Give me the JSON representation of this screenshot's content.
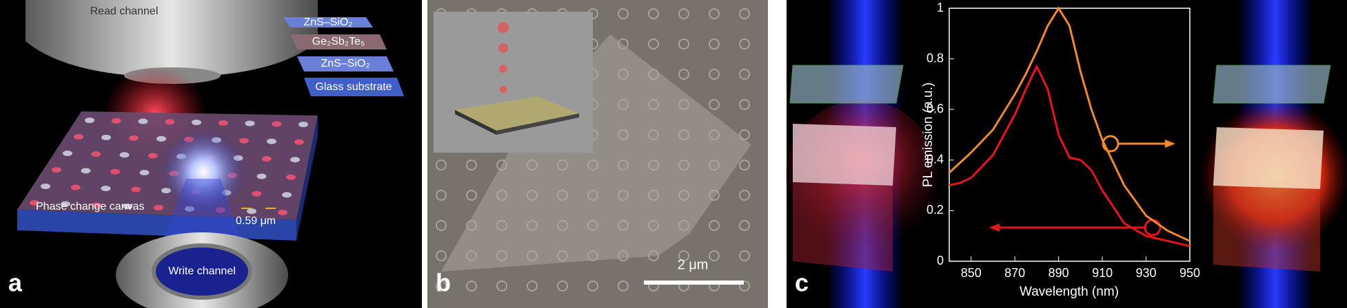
{
  "panel_a": {
    "letter": "a",
    "read_channel": "Read channel",
    "layers": [
      "ZnS–SiO₂",
      "Ge₂Sb₂Te₅",
      "ZnS–SiO₂",
      "Glass substrate"
    ],
    "canvas_label": "Phase change canvas",
    "spacing_label": "0.59 μm",
    "write_channel": "Write channel"
  },
  "panel_b": {
    "letter": "b",
    "scale_label": "2 μm"
  },
  "panel_c": {
    "letter": "c",
    "chart_data": {
      "type": "line",
      "x_label": "Wavelength (nm)",
      "y_label": "PL emission (a.u.)",
      "x": [
        840,
        845,
        850,
        860,
        870,
        875,
        880,
        885,
        890,
        895,
        900,
        905,
        910,
        920,
        930,
        940,
        950
      ],
      "series": [
        {
          "color": "#f08a2c",
          "values": [
            0.35,
            0.39,
            0.43,
            0.52,
            0.66,
            0.74,
            0.83,
            0.93,
            1.0,
            0.93,
            0.75,
            0.6,
            0.48,
            0.3,
            0.18,
            0.12,
            0.08
          ]
        },
        {
          "color": "#e8141c",
          "values": [
            0.3,
            0.31,
            0.33,
            0.42,
            0.58,
            0.68,
            0.77,
            0.68,
            0.5,
            0.41,
            0.4,
            0.36,
            0.28,
            0.15,
            0.1,
            0.08,
            0.06
          ]
        }
      ],
      "xlim": [
        840,
        950
      ],
      "xticks": [
        850,
        870,
        890,
        910,
        930,
        950
      ],
      "ylim": [
        0,
        1
      ],
      "yticks": [
        0,
        0.2,
        0.4,
        0.6,
        0.8,
        1
      ]
    }
  }
}
